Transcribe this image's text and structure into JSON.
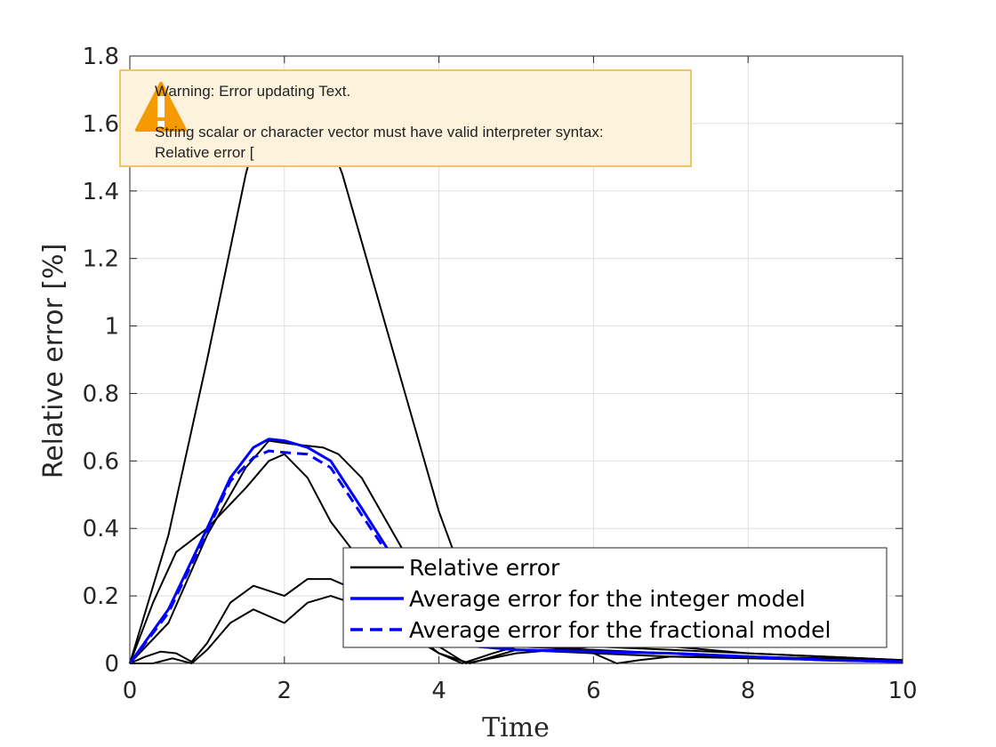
{
  "chart_data": {
    "type": "line",
    "xlabel": "Time",
    "ylabel": "Relative error [%]",
    "xlim": [
      0,
      10
    ],
    "ylim": [
      0,
      1.8
    ],
    "xticks": [
      "0",
      "2",
      "4",
      "6",
      "8",
      "10"
    ],
    "yticks": [
      "0",
      "0.2",
      "0.4",
      "0.6",
      "0.8",
      "1",
      "1.2",
      "1.4",
      "1.6",
      "1.8"
    ],
    "grid": true,
    "legend_position": "bottom-right",
    "legend": [
      {
        "label": "Relative error",
        "color": "#000000",
        "style": "solid"
      },
      {
        "label": "Average error for the integer model",
        "color": "#0000ff",
        "style": "solid"
      },
      {
        "label": "Average error for the fractional model",
        "color": "#0000ff",
        "style": "dashed"
      }
    ],
    "series": [
      {
        "color": "#000000",
        "style": "solid",
        "x": [
          0,
          0.5,
          1.0,
          1.5,
          1.75,
          2.0,
          2.25,
          2.5,
          2.75,
          3.0,
          3.5,
          4.0,
          4.4,
          5.0,
          6.0,
          7.0,
          8.0,
          9.0,
          10.0
        ],
        "y": [
          0,
          0.38,
          0.9,
          1.45,
          1.66,
          1.75,
          1.72,
          1.6,
          1.45,
          1.25,
          0.85,
          0.45,
          0.2,
          0.12,
          0.07,
          0.05,
          0.03,
          0.02,
          0.01
        ]
      },
      {
        "color": "#000000",
        "style": "solid",
        "x": [
          0,
          0.3,
          0.6,
          1.0,
          1.5,
          1.8,
          2.0,
          2.3,
          2.6,
          3.0,
          3.5,
          4.0,
          4.35,
          5.0,
          6.0,
          7.0,
          8.0,
          9.0,
          10.0
        ],
        "y": [
          0,
          0.18,
          0.33,
          0.4,
          0.52,
          0.6,
          0.62,
          0.55,
          0.42,
          0.3,
          0.15,
          0.05,
          0.0,
          0.03,
          0.05,
          0.04,
          0.03,
          0.02,
          0.01
        ]
      },
      {
        "color": "#000000",
        "style": "solid",
        "x": [
          0,
          0.5,
          1.0,
          1.5,
          1.8,
          2.1,
          2.5,
          2.7,
          3.0,
          3.5,
          4.0,
          4.5,
          5.0,
          6.0,
          7.0,
          8.0,
          9.0,
          10.0
        ],
        "y": [
          0,
          0.12,
          0.38,
          0.58,
          0.66,
          0.65,
          0.64,
          0.62,
          0.55,
          0.35,
          0.15,
          0.06,
          0.05,
          0.04,
          0.03,
          0.02,
          0.015,
          0.01
        ]
      },
      {
        "color": "#000000",
        "style": "solid",
        "x": [
          0,
          0.2,
          0.4,
          0.6,
          0.8,
          1.0,
          1.3,
          1.6,
          2.0,
          2.3,
          2.6,
          3.0,
          3.5,
          4.0,
          4.3,
          4.7,
          5.0,
          5.5,
          6.0,
          6.3,
          6.6,
          7.0,
          8.0,
          9.0,
          10.0
        ],
        "y": [
          0,
          0.02,
          0.035,
          0.03,
          0.005,
          0.06,
          0.18,
          0.23,
          0.2,
          0.25,
          0.25,
          0.21,
          0.12,
          0.03,
          0.0,
          0.03,
          0.05,
          0.05,
          0.03,
          0.0,
          0.01,
          0.02,
          0.02,
          0.01,
          0.005
        ]
      },
      {
        "color": "#000000",
        "style": "solid",
        "x": [
          0,
          0.3,
          0.55,
          0.8,
          1.0,
          1.3,
          1.6,
          2.0,
          2.3,
          2.6,
          3.0,
          3.5,
          4.0,
          4.4,
          5.0,
          6.0,
          7.0,
          8.0,
          9.0,
          10.0
        ],
        "y": [
          0,
          0.0,
          0.015,
          0.0,
          0.04,
          0.12,
          0.16,
          0.12,
          0.18,
          0.2,
          0.17,
          0.1,
          0.03,
          0.0,
          0.04,
          0.03,
          0.02,
          0.015,
          0.01,
          0.005
        ]
      },
      {
        "color": "#0000ff",
        "style": "solid",
        "width": 3,
        "x": [
          0,
          0.5,
          1.0,
          1.3,
          1.6,
          1.8,
          2.0,
          2.3,
          2.6,
          3.0,
          3.5,
          4.0,
          4.5,
          5.0,
          6.0,
          7.0,
          8.0,
          9.0,
          10.0
        ],
        "y": [
          0,
          0.16,
          0.4,
          0.55,
          0.64,
          0.665,
          0.66,
          0.64,
          0.6,
          0.46,
          0.28,
          0.12,
          0.05,
          0.04,
          0.035,
          0.03,
          0.02,
          0.01,
          0.005
        ]
      },
      {
        "color": "#0000ff",
        "style": "dashed",
        "width": 3,
        "x": [
          0,
          0.5,
          1.0,
          1.3,
          1.6,
          1.8,
          2.0,
          2.3,
          2.6,
          3.0,
          3.5,
          4.0,
          4.5,
          5.0,
          6.0,
          7.0,
          8.0,
          9.0,
          10.0
        ],
        "y": [
          0,
          0.15,
          0.39,
          0.54,
          0.61,
          0.63,
          0.625,
          0.62,
          0.58,
          0.44,
          0.27,
          0.11,
          0.05,
          0.04,
          0.035,
          0.03,
          0.02,
          0.01,
          0.005
        ]
      }
    ]
  },
  "warning": {
    "icon": "warning-triangle-icon",
    "lines": "Warning: Error updating Text.\n\nString scalar or character vector must have valid interpreter syntax:\nRelative error ["
  },
  "colors": {
    "warning_background": "#fdf3dc",
    "warning_border": "#f3c46e",
    "warning_icon": "#f59a00"
  }
}
